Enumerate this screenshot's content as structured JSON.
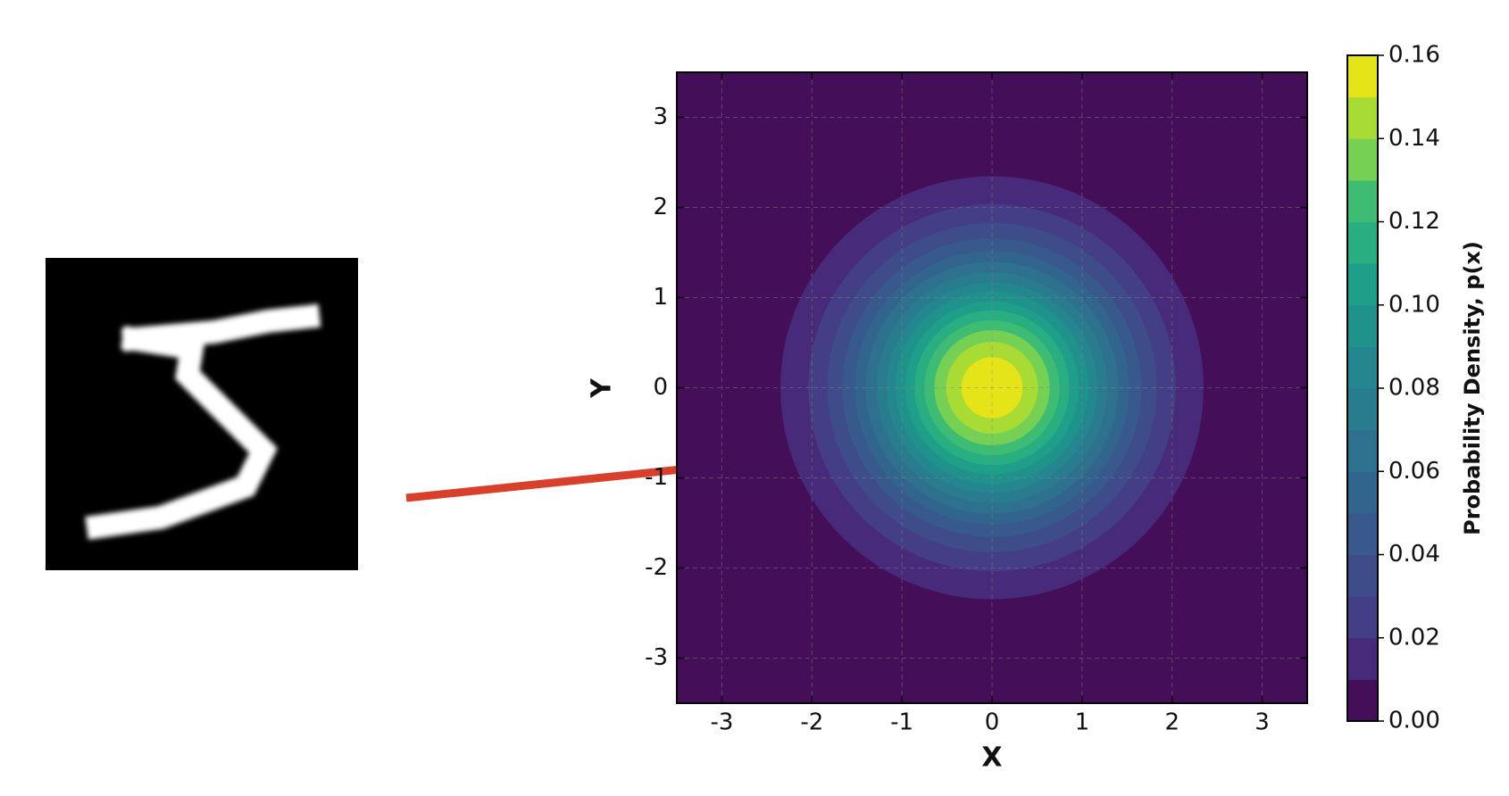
{
  "chart_data": {
    "type": "contour",
    "xlabel": "X",
    "ylabel": "Y",
    "colorbar_label": "Probability Density, p(x)",
    "xlim": [
      -3.5,
      3.5
    ],
    "ylim": [
      -3.5,
      3.5
    ],
    "xticks": [
      -3,
      -2,
      -1,
      0,
      1,
      2,
      3
    ],
    "yticks": [
      -3,
      -2,
      -1,
      0,
      1,
      2,
      3
    ],
    "grid": true,
    "center": [
      0,
      0
    ],
    "levels": [
      0,
      0.01,
      0.02,
      0.03,
      0.04,
      0.05,
      0.06,
      0.07,
      0.08,
      0.09,
      0.1,
      0.11,
      0.12,
      0.13,
      0.14,
      0.15,
      0.16
    ],
    "radii": [
      2.35,
      2.04,
      1.83,
      1.66,
      1.52,
      1.4,
      1.28,
      1.17,
      1.07,
      0.96,
      0.86,
      0.75,
      0.64,
      0.51,
      0.34
    ],
    "colors": [
      "#440f58",
      "#472a7a",
      "#433e85",
      "#3e4c8a",
      "#38598c",
      "#32658e",
      "#2d718e",
      "#297b8e",
      "#24868e",
      "#20928c",
      "#1f9e89",
      "#28ae80",
      "#3fbc73",
      "#75d054",
      "#a8db34",
      "#e5e419"
    ],
    "colorbar_ticks": [
      {
        "value": 0,
        "label": "0.00"
      },
      {
        "value": 0.02,
        "label": "0.02"
      },
      {
        "value": 0.04,
        "label": "0.04"
      },
      {
        "value": 0.06,
        "label": "0.06"
      },
      {
        "value": 0.08,
        "label": "0.08"
      },
      {
        "value": 0.1,
        "label": "0.10"
      },
      {
        "value": 0.12,
        "label": "0.12"
      },
      {
        "value": 0.14,
        "label": "0.14"
      },
      {
        "value": 0.16,
        "label": "0.16"
      }
    ]
  }
}
